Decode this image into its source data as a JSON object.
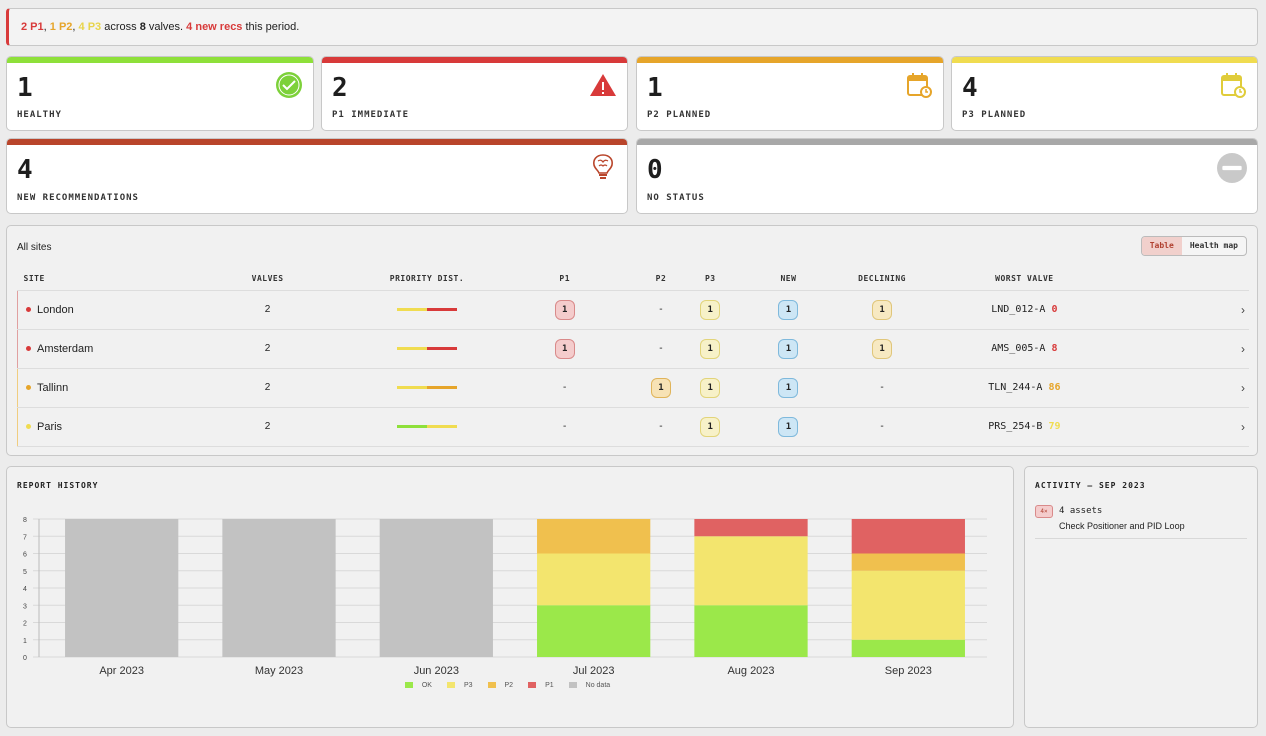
{
  "banner": {
    "p1": "2 P1",
    "sep1": ", ",
    "p2": "1 P2",
    "sep2": ", ",
    "p3": "4 P3",
    "across": " across ",
    "valves": "8",
    "valves_word": " valves. ",
    "recs": "4 new recs",
    "tail": " this period."
  },
  "kpis": [
    {
      "value": "1",
      "label": "HEALTHY",
      "color": "#8ee03a",
      "icon": "check-circle-icon"
    },
    {
      "value": "2",
      "label": "P1 IMMEDIATE",
      "color": "#d83a3a",
      "icon": "warning-triangle-icon"
    },
    {
      "value": "1",
      "label": "P2 PLANNED",
      "color": "#e6a52a",
      "icon": "calendar-clock-icon"
    },
    {
      "value": "4",
      "label": "P3 PLANNED",
      "color": "#f0dc50",
      "icon": "calendar-clock-icon"
    },
    {
      "value": "4",
      "label": "NEW RECOMMENDATIONS",
      "color": "#b9452b",
      "icon": "brain-bulb-icon"
    },
    {
      "value": "0",
      "label": "NO STATUS",
      "color": "#a8a8a8",
      "icon": "no-entry-icon"
    }
  ],
  "sites_panel": {
    "title": "All sites",
    "toggle": {
      "table": "Table",
      "map": "Health map",
      "active": "Table"
    },
    "columns": [
      "SITE",
      "VALVES",
      "PRIORITY DIST.",
      "P1",
      "P2",
      "P3",
      "NEW",
      "DECLINING",
      "WORST VALVE"
    ],
    "rows": [
      {
        "site": "London",
        "dot": "#d83a3a",
        "valves": "2",
        "dist": [
          [
            "#f0dc50",
            0.5
          ],
          [
            "#d83a3a",
            0.5
          ]
        ],
        "p1": "1",
        "p2": "-",
        "p3": "1",
        "new": "1",
        "declining": "1",
        "worst": "LND_012-A",
        "score": "0",
        "score_color": "#d83a3a"
      },
      {
        "site": "Amsterdam",
        "dot": "#d83a3a",
        "valves": "2",
        "dist": [
          [
            "#f0dc50",
            0.5
          ],
          [
            "#d83a3a",
            0.5
          ]
        ],
        "p1": "1",
        "p2": "-",
        "p3": "1",
        "new": "1",
        "declining": "1",
        "worst": "AMS_005-A",
        "score": "8",
        "score_color": "#d83a3a"
      },
      {
        "site": "Tallinn",
        "dot": "#e6a52a",
        "valves": "2",
        "dist": [
          [
            "#f0dc50",
            0.5
          ],
          [
            "#e6a52a",
            0.5
          ]
        ],
        "p1": "-",
        "p2": "1",
        "p3": "1",
        "new": "1",
        "declining": "-",
        "worst": "TLN_244-A",
        "score": "86",
        "score_color": "#e6a52a"
      },
      {
        "site": "Paris",
        "dot": "#f0dc50",
        "valves": "2",
        "dist": [
          [
            "#8ee03a",
            0.5
          ],
          [
            "#f0dc50",
            0.5
          ]
        ],
        "p1": "-",
        "p2": "-",
        "p3": "1",
        "new": "1",
        "declining": "-",
        "worst": "PRS_254-B",
        "score": "79",
        "score_color": "#f0dc50"
      }
    ]
  },
  "report_history": {
    "title": "REPORT HISTORY",
    "legend": [
      {
        "name": "OK",
        "color": "#9be84a"
      },
      {
        "name": "P3",
        "color": "#f3e56e"
      },
      {
        "name": "P2",
        "color": "#f0c04e"
      },
      {
        "name": "P1",
        "color": "#e06262"
      },
      {
        "name": "No data",
        "color": "#c2c2c2"
      }
    ]
  },
  "chart_data": {
    "type": "bar",
    "stacked": true,
    "categories": [
      "Apr 2023",
      "May 2023",
      "Jun 2023",
      "Jul 2023",
      "Aug 2023",
      "Sep 2023"
    ],
    "series": [
      {
        "name": "OK",
        "color": "#9be84a",
        "values": [
          0,
          0,
          0,
          3,
          3,
          1
        ]
      },
      {
        "name": "P3",
        "color": "#f3e56e",
        "values": [
          0,
          0,
          0,
          3,
          4,
          4
        ]
      },
      {
        "name": "P2",
        "color": "#f0c04e",
        "values": [
          0,
          0,
          0,
          2,
          0,
          1
        ]
      },
      {
        "name": "P1",
        "color": "#e06262",
        "values": [
          0,
          0,
          0,
          0,
          1,
          2
        ]
      },
      {
        "name": "No data",
        "color": "#c2c2c2",
        "values": [
          8,
          8,
          8,
          0,
          0,
          0
        ]
      }
    ],
    "ylim": [
      0,
      8
    ],
    "yticks": [
      "0",
      "1",
      "2",
      "3",
      "4",
      "5",
      "6",
      "7",
      "8"
    ],
    "grid": true,
    "legend_position": "bottom"
  },
  "activity": {
    "title": "ACTIVITY — SEP 2023",
    "items": [
      {
        "badge": "4×",
        "assets": "4 assets",
        "recommendation": "Check Positioner and PID Loop"
      }
    ]
  }
}
